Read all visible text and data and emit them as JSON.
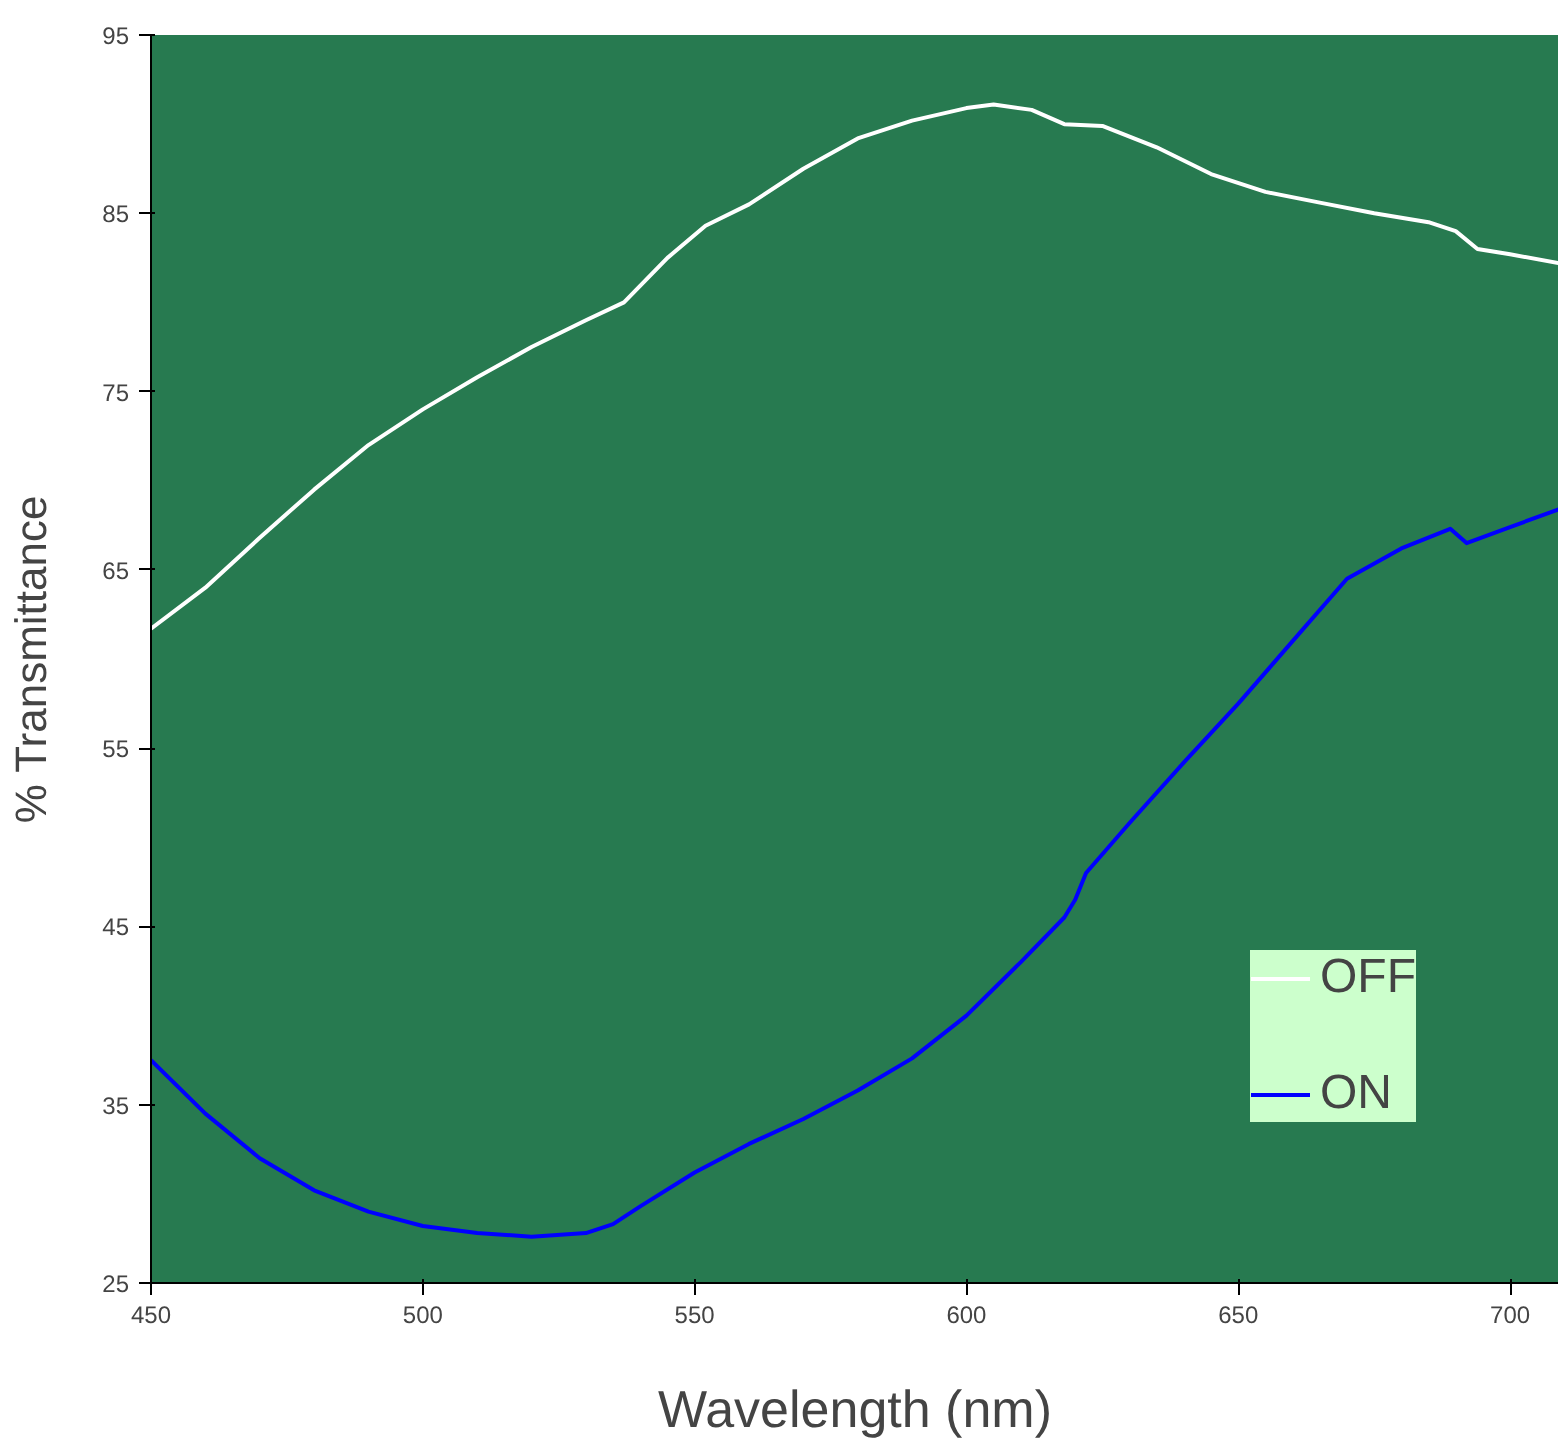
{
  "chart_data": {
    "type": "line",
    "xlabel": "Wavelength (nm)",
    "ylabel": "% Transmittance",
    "xlim": [
      450,
      709
    ],
    "ylim": [
      25,
      95
    ],
    "xticks": [
      450,
      500,
      550,
      600,
      650,
      700
    ],
    "yticks": [
      25,
      35,
      45,
      55,
      65,
      75,
      85,
      95
    ],
    "grid": false,
    "legend": "right",
    "marker": "none",
    "line_style": "solid",
    "series": [
      {
        "name": "OFF",
        "color": "#ffffff",
        "x": [
          450,
          460,
          470,
          480,
          490,
          500,
          510,
          520,
          530,
          537,
          545,
          552,
          560,
          570,
          580,
          590,
          600,
          605,
          612,
          618,
          625,
          635,
          645,
          655,
          665,
          675,
          685,
          690,
          694,
          700,
          709
        ],
        "values": [
          61.7,
          64,
          66.8,
          69.5,
          72,
          74,
          75.8,
          77.5,
          79,
          80,
          82.5,
          84.3,
          85.5,
          87.5,
          89.2,
          90.2,
          90.9,
          91.1,
          90.8,
          90,
          89.9,
          88.7,
          87.2,
          86.2,
          85.6,
          85,
          84.5,
          84,
          83,
          82.7,
          82.2
        ]
      },
      {
        "name": "ON",
        "color": "#0000ff",
        "x": [
          450,
          460,
          470,
          480,
          490,
          500,
          510,
          520,
          530,
          535,
          540,
          550,
          560,
          570,
          580,
          590,
          600,
          610,
          618,
          620,
          622,
          630,
          640,
          650,
          660,
          670,
          680,
          689,
          692,
          700,
          709
        ],
        "values": [
          37.5,
          34.5,
          32,
          30.2,
          29,
          28.2,
          27.8,
          27.6,
          27.8,
          28.3,
          29.3,
          31.2,
          32.8,
          34.2,
          35.8,
          37.6,
          40,
          43,
          45.5,
          46.5,
          48,
          50.8,
          54.2,
          57.5,
          61,
          64.5,
          66.2,
          67.3,
          66.5,
          67.4,
          68.4
        ]
      }
    ]
  }
}
